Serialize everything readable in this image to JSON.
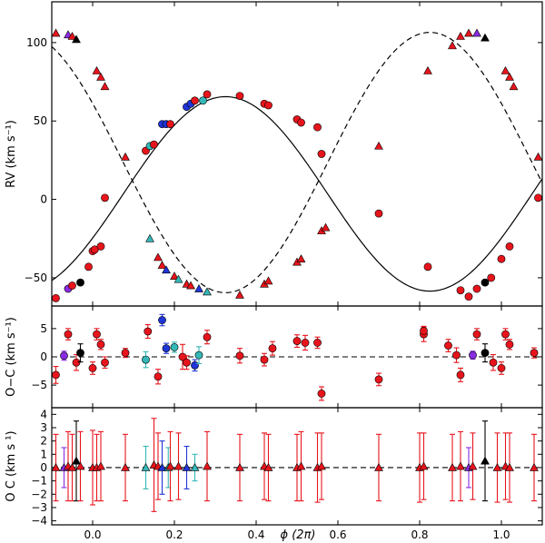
{
  "chart_data": {
    "type": "scatter",
    "xlabel": "ϕ (2π)",
    "xlim": [
      -0.1,
      1.1
    ],
    "xticks": [
      0.0,
      0.2,
      0.4,
      0.6,
      0.8,
      1.0
    ],
    "xtick_labels": [
      "0.0",
      "0.2",
      "0.4",
      "0.6",
      "0.8",
      "1.0"
    ],
    "colors": {
      "red": "#e8141c",
      "blue": "#1f35d8",
      "cyan": "#35b7b7",
      "purple": "#8a2be2",
      "black": "#000000"
    },
    "panels": [
      {
        "id": "rv",
        "ylabel": "RV (km s⁻¹)",
        "ylim": [
          -68,
          126
        ],
        "yticks": [
          -50,
          0,
          50,
          100
        ],
        "ytick_labels": [
          "−50",
          "0",
          "50",
          "100"
        ],
        "model": {
          "primary": {
            "gamma": 3.5,
            "K": 62,
            "phase_max": 0.325,
            "style": "solid"
          },
          "secondary": {
            "gamma": 23.5,
            "K": 83,
            "phase_max": 0.825,
            "style": "dashed"
          }
        },
        "series": [
          {
            "name": "primary (circles)",
            "marker": "circle",
            "points": [
              {
                "x": -0.09,
                "y": -63,
                "c": "red"
              },
              {
                "x": -0.06,
                "y": -57,
                "c": "purple"
              },
              {
                "x": -0.05,
                "y": -55,
                "c": "red"
              },
              {
                "x": -0.03,
                "y": -53,
                "c": "black"
              },
              {
                "x": -0.01,
                "y": -43,
                "c": "red"
              },
              {
                "x": 0.0,
                "y": -33,
                "c": "red"
              },
              {
                "x": 0.005,
                "y": -32,
                "c": "red"
              },
              {
                "x": 0.02,
                "y": -30,
                "c": "red"
              },
              {
                "x": 0.03,
                "y": 1,
                "c": "red"
              },
              {
                "x": 0.13,
                "y": 31,
                "c": "red"
              },
              {
                "x": 0.14,
                "y": 34,
                "c": "cyan"
              },
              {
                "x": 0.15,
                "y": 35,
                "c": "red"
              },
              {
                "x": 0.17,
                "y": 48,
                "c": "blue"
              },
              {
                "x": 0.18,
                "y": 48,
                "c": "blue"
              },
              {
                "x": 0.19,
                "y": 48,
                "c": "red"
              },
              {
                "x": 0.23,
                "y": 59,
                "c": "blue"
              },
              {
                "x": 0.24,
                "y": 61,
                "c": "blue"
              },
              {
                "x": 0.25,
                "y": 63,
                "c": "red"
              },
              {
                "x": 0.27,
                "y": 63,
                "c": "cyan"
              },
              {
                "x": 0.28,
                "y": 67,
                "c": "red"
              },
              {
                "x": 0.36,
                "y": 66,
                "c": "red"
              },
              {
                "x": 0.42,
                "y": 61,
                "c": "red"
              },
              {
                "x": 0.43,
                "y": 60,
                "c": "red"
              },
              {
                "x": 0.5,
                "y": 51,
                "c": "red"
              },
              {
                "x": 0.51,
                "y": 49,
                "c": "red"
              },
              {
                "x": 0.55,
                "y": 46,
                "c": "red"
              },
              {
                "x": 0.56,
                "y": 29,
                "c": "red"
              },
              {
                "x": 0.7,
                "y": -9,
                "c": "red"
              },
              {
                "x": 0.82,
                "y": -43,
                "c": "red"
              },
              {
                "x": 0.9,
                "y": -58,
                "c": "red"
              },
              {
                "x": 0.92,
                "y": -62,
                "c": "red"
              },
              {
                "x": 0.94,
                "y": -57,
                "c": "red"
              },
              {
                "x": 0.96,
                "y": -53,
                "c": "black"
              },
              {
                "x": 0.975,
                "y": -50,
                "c": "red"
              },
              {
                "x": 1.0,
                "y": -38,
                "c": "red"
              },
              {
                "x": 1.02,
                "y": -30,
                "c": "red"
              },
              {
                "x": 1.09,
                "y": 1,
                "c": "red"
              }
            ]
          },
          {
            "name": "secondary (triangles)",
            "marker": "triangle",
            "points": [
              {
                "x": -0.09,
                "y": 106,
                "c": "red"
              },
              {
                "x": -0.06,
                "y": 105,
                "c": "purple"
              },
              {
                "x": -0.05,
                "y": 104,
                "c": "red"
              },
              {
                "x": -0.04,
                "y": 102,
                "c": "black"
              },
              {
                "x": 0.01,
                "y": 82,
                "c": "red"
              },
              {
                "x": 0.02,
                "y": 78,
                "c": "red"
              },
              {
                "x": 0.03,
                "y": 72,
                "c": "red"
              },
              {
                "x": 0.08,
                "y": 27,
                "c": "red"
              },
              {
                "x": 0.14,
                "y": -25,
                "c": "cyan"
              },
              {
                "x": 0.16,
                "y": -37,
                "c": "red"
              },
              {
                "x": 0.17,
                "y": -42,
                "c": "red"
              },
              {
                "x": 0.18,
                "y": -45,
                "c": "blue"
              },
              {
                "x": 0.2,
                "y": -49,
                "c": "red"
              },
              {
                "x": 0.21,
                "y": -51,
                "c": "cyan"
              },
              {
                "x": 0.23,
                "y": -54,
                "c": "red"
              },
              {
                "x": 0.24,
                "y": -55,
                "c": "red"
              },
              {
                "x": 0.26,
                "y": -57,
                "c": "blue"
              },
              {
                "x": 0.28,
                "y": -59,
                "c": "cyan"
              },
              {
                "x": 0.36,
                "y": -61,
                "c": "red"
              },
              {
                "x": 0.42,
                "y": -54,
                "c": "red"
              },
              {
                "x": 0.43,
                "y": -52,
                "c": "red"
              },
              {
                "x": 0.5,
                "y": -40,
                "c": "red"
              },
              {
                "x": 0.51,
                "y": -38,
                "c": "red"
              },
              {
                "x": 0.56,
                "y": -20,
                "c": "red"
              },
              {
                "x": 0.57,
                "y": -18,
                "c": "red"
              },
              {
                "x": 0.7,
                "y": 34,
                "c": "red"
              },
              {
                "x": 0.82,
                "y": 82,
                "c": "red"
              },
              {
                "x": 0.88,
                "y": 98,
                "c": "red"
              },
              {
                "x": 0.9,
                "y": 104,
                "c": "red"
              },
              {
                "x": 0.92,
                "y": 106,
                "c": "red"
              },
              {
                "x": 0.94,
                "y": 106,
                "c": "purple"
              },
              {
                "x": 0.96,
                "y": 103,
                "c": "black"
              },
              {
                "x": 1.01,
                "y": 82,
                "c": "red"
              },
              {
                "x": 1.02,
                "y": 78,
                "c": "red"
              },
              {
                "x": 1.03,
                "y": 72,
                "c": "red"
              },
              {
                "x": 1.09,
                "y": 27,
                "c": "red"
              }
            ]
          }
        ]
      },
      {
        "id": "oc_primary",
        "ylabel": "O−C (km s⁻¹)",
        "ylim": [
          -9,
          9
        ],
        "yticks": [
          -5,
          0,
          5
        ],
        "ytick_labels": [
          "−5",
          "0",
          "5"
        ],
        "marker": "circle",
        "points": [
          {
            "x": -0.09,
            "y": -3.2,
            "e": 1.5,
            "c": "red"
          },
          {
            "x": -0.07,
            "y": 0.2,
            "e": 0.8,
            "c": "purple"
          },
          {
            "x": -0.06,
            "y": 4.0,
            "e": 1.0,
            "c": "red"
          },
          {
            "x": -0.04,
            "y": -1.0,
            "e": 1.4,
            "c": "red"
          },
          {
            "x": -0.03,
            "y": 0.7,
            "e": 1.6,
            "c": "black"
          },
          {
            "x": 0.0,
            "y": -2.0,
            "e": 1.1,
            "c": "red"
          },
          {
            "x": 0.01,
            "y": 4.0,
            "e": 1.0,
            "c": "red"
          },
          {
            "x": 0.02,
            "y": 2.2,
            "e": 0.9,
            "c": "red"
          },
          {
            "x": 0.03,
            "y": -1.0,
            "e": 1.0,
            "c": "red"
          },
          {
            "x": 0.08,
            "y": 0.7,
            "e": 0.8,
            "c": "red"
          },
          {
            "x": 0.13,
            "y": -0.5,
            "e": 1.4,
            "c": "cyan"
          },
          {
            "x": 0.135,
            "y": 4.5,
            "e": 1.2,
            "c": "red"
          },
          {
            "x": 0.16,
            "y": -3.5,
            "e": 1.3,
            "c": "red"
          },
          {
            "x": 0.17,
            "y": 6.5,
            "e": 1.0,
            "c": "blue"
          },
          {
            "x": 0.18,
            "y": 1.5,
            "e": 0.9,
            "c": "blue"
          },
          {
            "x": 0.2,
            "y": 1.7,
            "e": 0.9,
            "c": "cyan"
          },
          {
            "x": 0.22,
            "y": 0.0,
            "e": 2.2,
            "c": "red"
          },
          {
            "x": 0.23,
            "y": -1.0,
            "e": 1.2,
            "c": "red"
          },
          {
            "x": 0.25,
            "y": -1.5,
            "e": 1.0,
            "c": "blue"
          },
          {
            "x": 0.26,
            "y": 0.3,
            "e": 1.5,
            "c": "cyan"
          },
          {
            "x": 0.28,
            "y": 3.5,
            "e": 1.2,
            "c": "red"
          },
          {
            "x": 0.36,
            "y": 0.2,
            "e": 1.3,
            "c": "red"
          },
          {
            "x": 0.42,
            "y": -0.5,
            "e": 1.1,
            "c": "red"
          },
          {
            "x": 0.44,
            "y": 1.5,
            "e": 1.2,
            "c": "red"
          },
          {
            "x": 0.5,
            "y": 2.8,
            "e": 1.1,
            "c": "red"
          },
          {
            "x": 0.52,
            "y": 2.5,
            "e": 1.3,
            "c": "red"
          },
          {
            "x": 0.55,
            "y": 2.5,
            "e": 1.0,
            "c": "red"
          },
          {
            "x": 0.56,
            "y": -6.5,
            "e": 1.2,
            "c": "red"
          },
          {
            "x": 0.7,
            "y": -4.0,
            "e": 1.1,
            "c": "red"
          },
          {
            "x": 0.81,
            "y": 4.0,
            "e": 1.3,
            "c": "red"
          },
          {
            "x": 0.81,
            "y": 4.6,
            "e": 0.8,
            "c": "red"
          },
          {
            "x": 0.87,
            "y": 2.0,
            "e": 1.1,
            "c": "red"
          },
          {
            "x": 0.89,
            "y": 0.3,
            "e": 1.3,
            "c": "red"
          },
          {
            "x": 0.9,
            "y": -3.2,
            "e": 1.2,
            "c": "red"
          },
          {
            "x": 0.93,
            "y": 0.3,
            "e": 0.7,
            "c": "purple"
          },
          {
            "x": 0.94,
            "y": 4.0,
            "e": 1.0,
            "c": "red"
          },
          {
            "x": 0.96,
            "y": 0.7,
            "e": 1.6,
            "c": "black"
          },
          {
            "x": 0.98,
            "y": -1.0,
            "e": 1.4,
            "c": "red"
          },
          {
            "x": 1.0,
            "y": -2.0,
            "e": 1.1,
            "c": "red"
          },
          {
            "x": 1.01,
            "y": 4.0,
            "e": 1.0,
            "c": "red"
          },
          {
            "x": 1.02,
            "y": 2.2,
            "e": 0.9,
            "c": "red"
          },
          {
            "x": 1.08,
            "y": 0.7,
            "e": 0.9,
            "c": "red"
          }
        ]
      },
      {
        "id": "oc_secondary",
        "ylabel": "O  C (km s  ¹)",
        "ylim": [
          -4.3,
          4.5
        ],
        "yticks": [
          -4,
          -3,
          -2,
          -1,
          0,
          1,
          2,
          3,
          4
        ],
        "ytick_labels": [
          "−4",
          "−3",
          "−2",
          "−1",
          "0",
          "1",
          "2",
          "3",
          "4"
        ],
        "marker": "triangle",
        "points": [
          {
            "x": -0.09,
            "y": 0.0,
            "e": 2.5,
            "c": "red"
          },
          {
            "x": -0.07,
            "y": 0.0,
            "e": 1.5,
            "c": "purple"
          },
          {
            "x": -0.06,
            "y": 0.1,
            "e": 2.6,
            "c": "red"
          },
          {
            "x": -0.05,
            "y": 0.0,
            "e": 2.5,
            "c": "red"
          },
          {
            "x": -0.04,
            "y": 0.5,
            "e": 3.0,
            "c": "black"
          },
          {
            "x": -0.03,
            "y": 0.1,
            "e": 2.6,
            "c": "red"
          },
          {
            "x": 0.0,
            "y": 0.0,
            "e": 2.8,
            "c": "red"
          },
          {
            "x": 0.01,
            "y": 0.0,
            "e": 2.5,
            "c": "red"
          },
          {
            "x": 0.02,
            "y": 0.1,
            "e": 2.6,
            "c": "red"
          },
          {
            "x": 0.08,
            "y": 0.0,
            "e": 2.5,
            "c": "red"
          },
          {
            "x": 0.13,
            "y": 0.0,
            "e": 1.6,
            "c": "cyan"
          },
          {
            "x": 0.15,
            "y": 0.2,
            "e": 3.5,
            "c": "red"
          },
          {
            "x": 0.16,
            "y": 0.1,
            "e": 2.5,
            "c": "red"
          },
          {
            "x": 0.17,
            "y": 0.0,
            "e": 2.0,
            "c": "blue"
          },
          {
            "x": 0.185,
            "y": 0.0,
            "e": 1.5,
            "c": "cyan"
          },
          {
            "x": 0.19,
            "y": 0.1,
            "e": 2.6,
            "c": "red"
          },
          {
            "x": 0.21,
            "y": 0.1,
            "e": 2.5,
            "c": "red"
          },
          {
            "x": 0.23,
            "y": 0.0,
            "e": 1.6,
            "c": "blue"
          },
          {
            "x": 0.25,
            "y": 0.0,
            "e": 1.0,
            "c": "cyan"
          },
          {
            "x": 0.28,
            "y": 0.1,
            "e": 2.6,
            "c": "red"
          },
          {
            "x": 0.36,
            "y": 0.0,
            "e": 2.5,
            "c": "red"
          },
          {
            "x": 0.42,
            "y": 0.1,
            "e": 2.5,
            "c": "red"
          },
          {
            "x": 0.43,
            "y": 0.0,
            "e": 2.5,
            "c": "red"
          },
          {
            "x": 0.5,
            "y": 0.0,
            "e": 2.5,
            "c": "red"
          },
          {
            "x": 0.51,
            "y": 0.1,
            "e": 2.6,
            "c": "red"
          },
          {
            "x": 0.55,
            "y": 0.0,
            "e": 2.6,
            "c": "red"
          },
          {
            "x": 0.56,
            "y": 0.1,
            "e": 2.5,
            "c": "red"
          },
          {
            "x": 0.7,
            "y": 0.0,
            "e": 2.5,
            "c": "red"
          },
          {
            "x": 0.8,
            "y": 0.0,
            "e": 2.6,
            "c": "red"
          },
          {
            "x": 0.81,
            "y": 0.1,
            "e": 2.5,
            "c": "red"
          },
          {
            "x": 0.88,
            "y": 0.0,
            "e": 2.5,
            "c": "red"
          },
          {
            "x": 0.9,
            "y": 0.1,
            "e": 2.6,
            "c": "red"
          },
          {
            "x": 0.92,
            "y": 0.0,
            "e": 1.5,
            "c": "purple"
          },
          {
            "x": 0.93,
            "y": 0.1,
            "e": 2.5,
            "c": "red"
          },
          {
            "x": 0.96,
            "y": 0.5,
            "e": 3.0,
            "c": "black"
          },
          {
            "x": 0.99,
            "y": 0.0,
            "e": 2.6,
            "c": "red"
          },
          {
            "x": 1.01,
            "y": 0.1,
            "e": 2.5,
            "c": "red"
          },
          {
            "x": 1.02,
            "y": 0.0,
            "e": 2.6,
            "c": "red"
          },
          {
            "x": 1.08,
            "y": 0.0,
            "e": 2.5,
            "c": "red"
          }
        ]
      }
    ]
  }
}
